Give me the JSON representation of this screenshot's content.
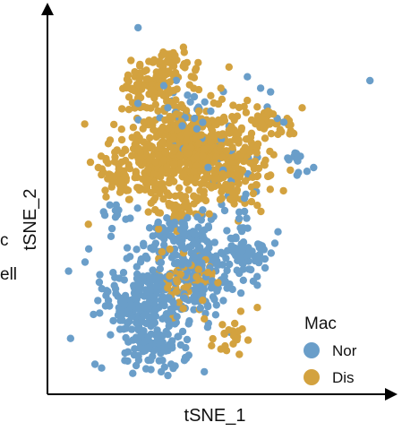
{
  "left_fragment": {
    "line1": "c",
    "line2": "ell"
  },
  "colors": {
    "normal": "#6a9ec9",
    "disease": "#d3a23f",
    "axis": "#000000"
  },
  "chart_data": {
    "type": "scatter",
    "title": "",
    "xlabel": "tSNE_1",
    "ylabel": "tSNE_2",
    "ticks": "none",
    "grid": false,
    "legend": {
      "title": "Mac",
      "placement": "bottom-right",
      "entries": [
        {
          "label": "Nor",
          "color": "#6a9ec9"
        },
        {
          "label": "Dis",
          "color": "#d3a23f"
        }
      ]
    },
    "xlim": [
      0,
      100
    ],
    "ylim": [
      0,
      100
    ],
    "series": [
      {
        "name": "Nor",
        "color": "#6a9ec9",
        "regions": [
          {
            "cx": 28,
            "cy": 24,
            "rx": 12,
            "ry": 12,
            "n": 260
          },
          {
            "cx": 44,
            "cy": 30,
            "rx": 10,
            "ry": 10,
            "n": 140
          },
          {
            "cx": 57,
            "cy": 37,
            "rx": 8,
            "ry": 8,
            "n": 70
          },
          {
            "cx": 38,
            "cy": 41,
            "rx": 11,
            "ry": 5,
            "n": 70
          },
          {
            "cx": 30,
            "cy": 12,
            "rx": 9,
            "ry": 4,
            "n": 60
          },
          {
            "cx": 40,
            "cy": 73,
            "rx": 14,
            "ry": 8,
            "n": 35
          },
          {
            "cx": 52,
            "cy": 56,
            "rx": 10,
            "ry": 12,
            "n": 25
          },
          {
            "cx": 20,
            "cy": 46,
            "rx": 5,
            "ry": 4,
            "n": 12
          },
          {
            "cx": 73,
            "cy": 61,
            "rx": 3,
            "ry": 3,
            "n": 8
          }
        ],
        "outliers": [
          [
            26,
            96
          ],
          [
            96,
            82
          ],
          [
            59,
            83
          ],
          [
            63,
            80
          ],
          [
            66,
            79
          ],
          [
            65,
            75
          ],
          [
            68,
            72
          ],
          [
            70,
            71
          ],
          [
            75,
            62
          ],
          [
            77,
            58
          ],
          [
            74,
            57
          ],
          [
            79,
            59
          ],
          [
            15,
            6
          ],
          [
            13,
            7
          ],
          [
            33,
            5
          ],
          [
            35,
            4
          ],
          [
            36,
            7
          ],
          [
            10,
            34
          ],
          [
            40,
            8
          ],
          [
            46,
            5
          ]
        ]
      },
      {
        "name": "Dis",
        "color": "#d3a23f",
        "regions": [
          {
            "cx": 41,
            "cy": 65,
            "rx": 17,
            "ry": 11,
            "n": 420
          },
          {
            "cx": 53,
            "cy": 58,
            "rx": 11,
            "ry": 9,
            "n": 160
          },
          {
            "cx": 32,
            "cy": 81,
            "rx": 10,
            "ry": 6,
            "n": 90
          },
          {
            "cx": 28,
            "cy": 58,
            "rx": 9,
            "ry": 7,
            "n": 110
          },
          {
            "cx": 36,
            "cy": 87,
            "rx": 5,
            "ry": 4,
            "n": 30
          },
          {
            "cx": 66,
            "cy": 71,
            "rx": 7,
            "ry": 4,
            "n": 35
          },
          {
            "cx": 38,
            "cy": 48,
            "rx": 7,
            "ry": 4,
            "n": 40
          },
          {
            "cx": 40,
            "cy": 30,
            "rx": 8,
            "ry": 7,
            "n": 60
          },
          {
            "cx": 54,
            "cy": 14,
            "rx": 5,
            "ry": 4,
            "n": 20
          },
          {
            "cx": 20,
            "cy": 55,
            "rx": 5,
            "ry": 5,
            "n": 20
          }
        ],
        "outliers": [
          [
            64,
            60
          ],
          [
            66,
            57
          ],
          [
            60,
            67
          ],
          [
            71,
            72
          ],
          [
            73,
            68
          ],
          [
            62,
            49
          ],
          [
            46,
            19
          ],
          [
            51,
            11
          ],
          [
            57,
            21
          ],
          [
            62,
            22
          ],
          [
            11,
            44
          ],
          [
            14,
            59
          ]
        ]
      }
    ]
  }
}
